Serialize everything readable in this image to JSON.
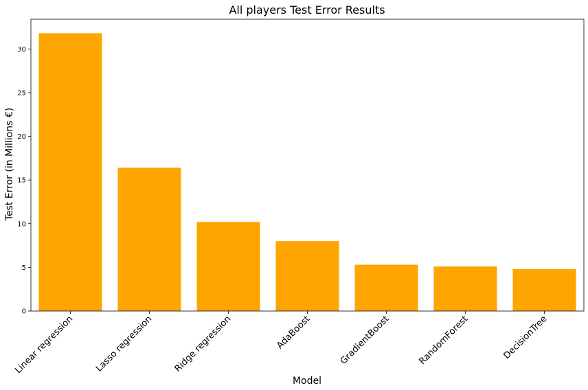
{
  "chart_data": {
    "type": "bar",
    "title": "All players Test Error Results",
    "xlabel": "Model",
    "ylabel": "Test Error (in Millions €)",
    "categories": [
      "Linear regression",
      "Lasso regression",
      "Ridge regression",
      "AdaBoost",
      "GradientBoost",
      "RandomForest",
      "DecisionTree"
    ],
    "values": [
      31.8,
      16.4,
      10.2,
      8.0,
      5.3,
      5.1,
      4.8
    ],
    "ylim": [
      0,
      33.4
    ],
    "yticks": [
      0,
      5,
      10,
      15,
      20,
      25,
      30
    ],
    "bar_color": "#ffa500",
    "grid": false
  }
}
